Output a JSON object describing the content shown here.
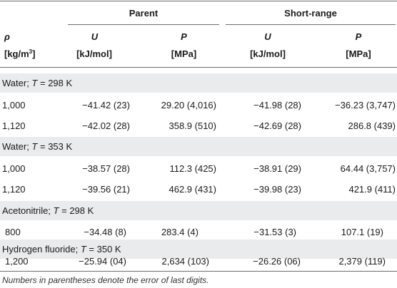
{
  "header": {
    "group_parent": "Parent",
    "group_short": "Short-range",
    "col_rho_symbol": "ρ",
    "col_rho_unit": "[kg/m",
    "col_rho_unit_sup": "3",
    "col_rho_unit_close": "]",
    "col_u": "U",
    "col_p": "P",
    "unit_u": "[kJ/mol]",
    "unit_p": "[MPa]"
  },
  "sections": [
    {
      "title_pre": "Water; ",
      "title_var": "T",
      "title_post": " = 298 K",
      "rows": [
        {
          "rho": "1,000",
          "u_parent": "−41.42 (23)",
          "p_parent": "29.20 (4,016)",
          "u_short": "−41.98 (28)",
          "p_short": "−36.23 (3,747)"
        },
        {
          "rho": "1,120",
          "u_parent": "−42.02 (28)",
          "p_parent": "358.9 (510)",
          "u_short": "−42.69 (28)",
          "p_short": "286.8 (439)"
        }
      ]
    },
    {
      "title_pre": "Water; ",
      "title_var": "T",
      "title_post": " = 353 K",
      "rows": [
        {
          "rho": "1,000",
          "u_parent": "−38.57 (28)",
          "p_parent": "112.3 (425)",
          "u_short": "−38.91 (29)",
          "p_short": "64.44 (3,757)"
        },
        {
          "rho": "1,120",
          "u_parent": "−39.56 (21)",
          "p_parent": "462.9 (431)",
          "u_short": "−39.98 (23)",
          "p_short": "421.9 (411)"
        }
      ]
    },
    {
      "title_pre": "Acetonitrile; ",
      "title_var": "T",
      "title_post": " = 298 K",
      "rows": [
        {
          "rho": "800",
          "u_parent": "−34.48 (8)",
          "p_parent": "283.4 (4)",
          "u_short": "−31.53 (3)",
          "p_short": "107.1 (19)"
        }
      ]
    },
    {
      "title_pre": "Hydrogen fluoride; ",
      "title_var": "T",
      "title_post": " = 350 K",
      "rows": [
        {
          "rho": "1,200",
          "u_parent": "−25.94 (04)",
          "p_parent": "2,634 (103)",
          "u_short": "−26.26 (06)",
          "p_short": "2,379 (119)"
        }
      ]
    }
  ],
  "footnote": "Numbers in parentheses denote the error of last digits."
}
